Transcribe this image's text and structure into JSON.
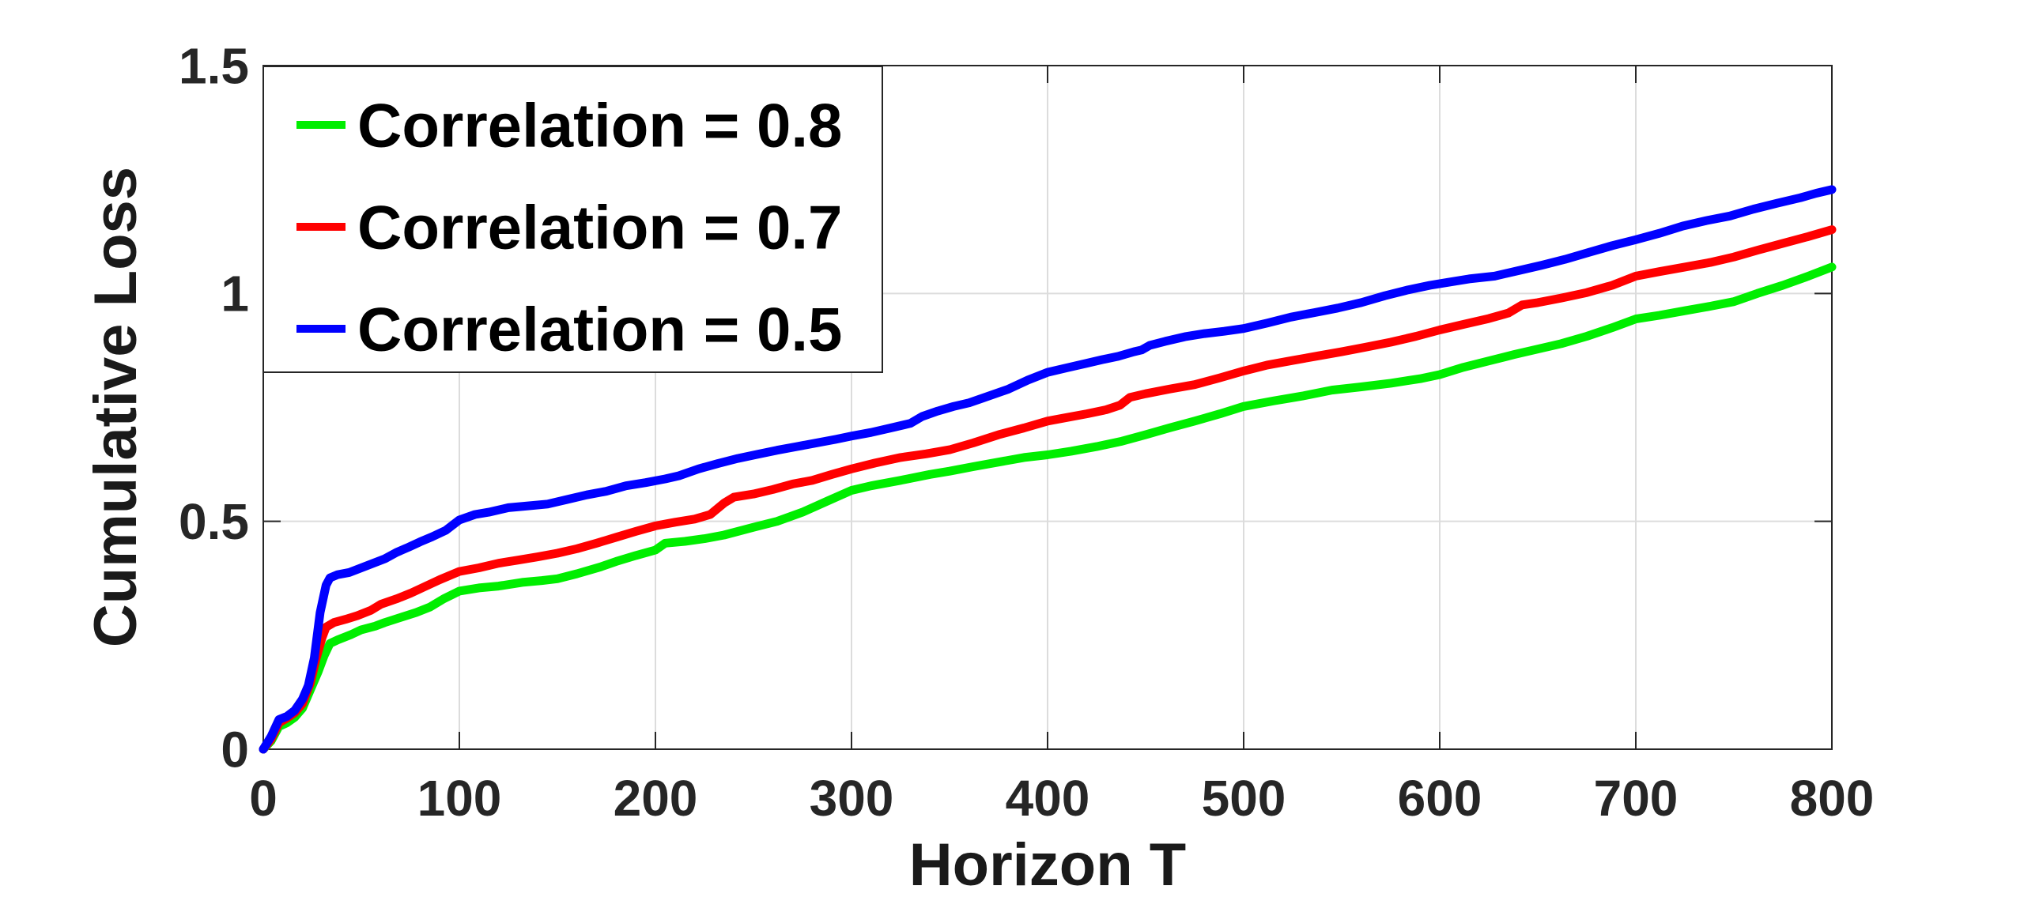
{
  "figure": {
    "background": "#ffffff",
    "spine_color": "#262626",
    "grid_color": "#dcdcdc",
    "tick_label_color": "#262626"
  },
  "chart_data": {
    "type": "line",
    "title": "",
    "xlabel": "Horizon T",
    "ylabel": "Cumulative Loss",
    "xlim": [
      0,
      800
    ],
    "ylim": [
      0,
      1.5
    ],
    "x_ticks": [
      0,
      100,
      200,
      300,
      400,
      500,
      600,
      700,
      800
    ],
    "x_tick_labels": [
      "0",
      "100",
      "200",
      "300",
      "400",
      "500",
      "600",
      "700",
      "800"
    ],
    "y_ticks": [
      0,
      0.5,
      1,
      1.5
    ],
    "y_tick_labels": [
      "0",
      "0.5",
      "1",
      "1.5"
    ],
    "grid": true,
    "legend_position": "northwest",
    "series": [
      {
        "name": "Correlation = 0.8",
        "color": "#00ee00",
        "points": [
          [
            0,
            0
          ],
          [
            4,
            0.018
          ],
          [
            8,
            0.05
          ],
          [
            12,
            0.058
          ],
          [
            16,
            0.07
          ],
          [
            20,
            0.09
          ],
          [
            24,
            0.13
          ],
          [
            28,
            0.17
          ],
          [
            31,
            0.205
          ],
          [
            34,
            0.232
          ],
          [
            38,
            0.24
          ],
          [
            45,
            0.252
          ],
          [
            50,
            0.262
          ],
          [
            57,
            0.27
          ],
          [
            62,
            0.278
          ],
          [
            70,
            0.289
          ],
          [
            78,
            0.3
          ],
          [
            85,
            0.312
          ],
          [
            92,
            0.33
          ],
          [
            100,
            0.347
          ],
          [
            110,
            0.354
          ],
          [
            120,
            0.358
          ],
          [
            132,
            0.366
          ],
          [
            142,
            0.37
          ],
          [
            150,
            0.374
          ],
          [
            160,
            0.385
          ],
          [
            172,
            0.4
          ],
          [
            180,
            0.412
          ],
          [
            190,
            0.425
          ],
          [
            200,
            0.437
          ],
          [
            205,
            0.452
          ],
          [
            215,
            0.456
          ],
          [
            225,
            0.462
          ],
          [
            235,
            0.47
          ],
          [
            250,
            0.487
          ],
          [
            262,
            0.5
          ],
          [
            275,
            0.52
          ],
          [
            288,
            0.545
          ],
          [
            300,
            0.568
          ],
          [
            310,
            0.578
          ],
          [
            325,
            0.59
          ],
          [
            340,
            0.603
          ],
          [
            350,
            0.61
          ],
          [
            362,
            0.62
          ],
          [
            375,
            0.63
          ],
          [
            388,
            0.64
          ],
          [
            400,
            0.646
          ],
          [
            412,
            0.654
          ],
          [
            425,
            0.664
          ],
          [
            438,
            0.676
          ],
          [
            450,
            0.69
          ],
          [
            462,
            0.705
          ],
          [
            475,
            0.72
          ],
          [
            488,
            0.736
          ],
          [
            500,
            0.752
          ],
          [
            515,
            0.764
          ],
          [
            530,
            0.775
          ],
          [
            545,
            0.788
          ],
          [
            560,
            0.795
          ],
          [
            575,
            0.803
          ],
          [
            590,
            0.813
          ],
          [
            600,
            0.822
          ],
          [
            612,
            0.838
          ],
          [
            625,
            0.852
          ],
          [
            638,
            0.866
          ],
          [
            650,
            0.878
          ],
          [
            662,
            0.89
          ],
          [
            675,
            0.906
          ],
          [
            688,
            0.925
          ],
          [
            700,
            0.944
          ],
          [
            712,
            0.952
          ],
          [
            725,
            0.962
          ],
          [
            738,
            0.972
          ],
          [
            750,
            0.982
          ],
          [
            762,
            1.0
          ],
          [
            775,
            1.018
          ],
          [
            788,
            1.038
          ],
          [
            800,
            1.058
          ]
        ]
      },
      {
        "name": "Correlation = 0.7",
        "color": "#ff0000",
        "points": [
          [
            0,
            0
          ],
          [
            4,
            0.022
          ],
          [
            8,
            0.058
          ],
          [
            12,
            0.068
          ],
          [
            16,
            0.08
          ],
          [
            20,
            0.1
          ],
          [
            24,
            0.145
          ],
          [
            27,
            0.2
          ],
          [
            30,
            0.245
          ],
          [
            32,
            0.268
          ],
          [
            36,
            0.278
          ],
          [
            42,
            0.285
          ],
          [
            48,
            0.293
          ],
          [
            55,
            0.305
          ],
          [
            60,
            0.318
          ],
          [
            68,
            0.33
          ],
          [
            75,
            0.342
          ],
          [
            82,
            0.356
          ],
          [
            90,
            0.372
          ],
          [
            100,
            0.39
          ],
          [
            110,
            0.398
          ],
          [
            120,
            0.408
          ],
          [
            130,
            0.415
          ],
          [
            140,
            0.422
          ],
          [
            150,
            0.43
          ],
          [
            160,
            0.44
          ],
          [
            170,
            0.452
          ],
          [
            180,
            0.465
          ],
          [
            190,
            0.478
          ],
          [
            200,
            0.49
          ],
          [
            210,
            0.498
          ],
          [
            220,
            0.505
          ],
          [
            228,
            0.515
          ],
          [
            235,
            0.54
          ],
          [
            240,
            0.553
          ],
          [
            250,
            0.56
          ],
          [
            260,
            0.57
          ],
          [
            270,
            0.582
          ],
          [
            280,
            0.59
          ],
          [
            290,
            0.603
          ],
          [
            300,
            0.615
          ],
          [
            312,
            0.628
          ],
          [
            325,
            0.64
          ],
          [
            338,
            0.648
          ],
          [
            350,
            0.657
          ],
          [
            362,
            0.672
          ],
          [
            375,
            0.69
          ],
          [
            388,
            0.705
          ],
          [
            400,
            0.72
          ],
          [
            410,
            0.728
          ],
          [
            420,
            0.736
          ],
          [
            430,
            0.745
          ],
          [
            437,
            0.755
          ],
          [
            442,
            0.772
          ],
          [
            450,
            0.78
          ],
          [
            462,
            0.79
          ],
          [
            475,
            0.8
          ],
          [
            488,
            0.815
          ],
          [
            500,
            0.83
          ],
          [
            512,
            0.843
          ],
          [
            525,
            0.853
          ],
          [
            538,
            0.863
          ],
          [
            550,
            0.872
          ],
          [
            562,
            0.882
          ],
          [
            575,
            0.893
          ],
          [
            588,
            0.906
          ],
          [
            600,
            0.92
          ],
          [
            612,
            0.932
          ],
          [
            625,
            0.945
          ],
          [
            635,
            0.957
          ],
          [
            642,
            0.975
          ],
          [
            650,
            0.98
          ],
          [
            662,
            0.99
          ],
          [
            675,
            1.002
          ],
          [
            688,
            1.018
          ],
          [
            700,
            1.038
          ],
          [
            712,
            1.048
          ],
          [
            725,
            1.058
          ],
          [
            738,
            1.068
          ],
          [
            750,
            1.08
          ],
          [
            762,
            1.095
          ],
          [
            775,
            1.11
          ],
          [
            788,
            1.125
          ],
          [
            800,
            1.14
          ]
        ]
      },
      {
        "name": "Correlation = 0.5",
        "color": "#0000ff",
        "points": [
          [
            0,
            0
          ],
          [
            4,
            0.028
          ],
          [
            8,
            0.065
          ],
          [
            12,
            0.072
          ],
          [
            16,
            0.085
          ],
          [
            20,
            0.11
          ],
          [
            23,
            0.14
          ],
          [
            26,
            0.2
          ],
          [
            29,
            0.3
          ],
          [
            32,
            0.36
          ],
          [
            34,
            0.376
          ],
          [
            38,
            0.383
          ],
          [
            44,
            0.388
          ],
          [
            50,
            0.398
          ],
          [
            56,
            0.408
          ],
          [
            62,
            0.418
          ],
          [
            68,
            0.432
          ],
          [
            74,
            0.443
          ],
          [
            80,
            0.455
          ],
          [
            86,
            0.466
          ],
          [
            93,
            0.48
          ],
          [
            100,
            0.503
          ],
          [
            108,
            0.515
          ],
          [
            115,
            0.52
          ],
          [
            125,
            0.53
          ],
          [
            135,
            0.534
          ],
          [
            145,
            0.538
          ],
          [
            155,
            0.548
          ],
          [
            165,
            0.558
          ],
          [
            175,
            0.566
          ],
          [
            185,
            0.578
          ],
          [
            195,
            0.585
          ],
          [
            205,
            0.593
          ],
          [
            212,
            0.6
          ],
          [
            222,
            0.615
          ],
          [
            232,
            0.627
          ],
          [
            242,
            0.638
          ],
          [
            252,
            0.647
          ],
          [
            262,
            0.656
          ],
          [
            272,
            0.664
          ],
          [
            282,
            0.672
          ],
          [
            292,
            0.68
          ],
          [
            300,
            0.687
          ],
          [
            310,
            0.695
          ],
          [
            320,
            0.705
          ],
          [
            330,
            0.715
          ],
          [
            336,
            0.73
          ],
          [
            344,
            0.742
          ],
          [
            352,
            0.752
          ],
          [
            360,
            0.76
          ],
          [
            370,
            0.775
          ],
          [
            380,
            0.79
          ],
          [
            390,
            0.81
          ],
          [
            400,
            0.827
          ],
          [
            410,
            0.837
          ],
          [
            420,
            0.847
          ],
          [
            428,
            0.855
          ],
          [
            436,
            0.862
          ],
          [
            444,
            0.872
          ],
          [
            448,
            0.876
          ],
          [
            452,
            0.886
          ],
          [
            460,
            0.895
          ],
          [
            470,
            0.905
          ],
          [
            480,
            0.912
          ],
          [
            490,
            0.917
          ],
          [
            500,
            0.923
          ],
          [
            512,
            0.935
          ],
          [
            524,
            0.948
          ],
          [
            536,
            0.958
          ],
          [
            548,
            0.968
          ],
          [
            560,
            0.98
          ],
          [
            572,
            0.995
          ],
          [
            584,
            1.008
          ],
          [
            595,
            1.018
          ],
          [
            605,
            1.025
          ],
          [
            615,
            1.032
          ],
          [
            628,
            1.038
          ],
          [
            640,
            1.05
          ],
          [
            652,
            1.062
          ],
          [
            664,
            1.075
          ],
          [
            676,
            1.09
          ],
          [
            688,
            1.105
          ],
          [
            700,
            1.118
          ],
          [
            712,
            1.132
          ],
          [
            724,
            1.148
          ],
          [
            736,
            1.16
          ],
          [
            748,
            1.17
          ],
          [
            760,
            1.185
          ],
          [
            772,
            1.198
          ],
          [
            784,
            1.21
          ],
          [
            792,
            1.22
          ],
          [
            800,
            1.228
          ]
        ]
      }
    ],
    "legend": {
      "entries": [
        {
          "label": "Correlation = 0.8",
          "color": "#00ee00"
        },
        {
          "label": "Correlation = 0.7",
          "color": "#ff0000"
        },
        {
          "label": "Correlation = 0.5",
          "color": "#0000ff"
        }
      ]
    }
  }
}
